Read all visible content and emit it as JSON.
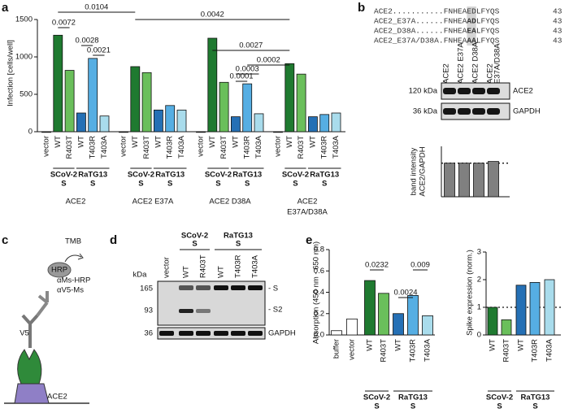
{
  "panel_labels": [
    "a",
    "b",
    "c",
    "d",
    "e"
  ],
  "alignment": {
    "rows": [
      {
        "name": "ACE2...........",
        "pre": "FNHEA",
        "mut": "ED",
        "post": "LFYQS",
        "end": "43"
      },
      {
        "name": "ACE2_E37A......",
        "pre": "FNHEA",
        "mut": "AD",
        "post": "LFYQS",
        "end": "43"
      },
      {
        "name": "ACE2_D38A......",
        "pre": "FNHEA",
        "mut": "EA",
        "post": "LFYQS",
        "end": "43"
      },
      {
        "name": "ACE2_E37A/D38A.",
        "pre": "FNHEA",
        "mut": "AA",
        "post": "LFYQS",
        "end": "43"
      }
    ]
  },
  "blot_b": {
    "lanes": [
      [
        "ACE2"
      ],
      [
        "ACE2 E37A"
      ],
      [
        "ACE2 D38A"
      ],
      [
        "ACE2",
        "E37A/D38A"
      ]
    ],
    "markers": [
      "120 kDa",
      "36 kDa"
    ],
    "bands": [
      "ACE2",
      "GAPDH"
    ]
  },
  "diagram_c": {
    "labels": [
      "TMB",
      "HRP",
      "αMs-HRP",
      "αV5-Ms",
      "V5",
      "ACE2"
    ]
  },
  "blot_d": {
    "unit": "kDa",
    "markers": [
      "165",
      "93",
      "36"
    ],
    "lanes": [
      "vector",
      "WT",
      "R403T",
      "WT",
      "T403R",
      "T403A"
    ],
    "groups": [
      [
        "SCoV-2",
        "S"
      ],
      [
        "RaTG13",
        "S"
      ]
    ],
    "bands": [
      "- S",
      "- S2",
      "GAPDH"
    ]
  },
  "chart_data": [
    {
      "type": "grouped_bar",
      "ylabel": "Infection [cells/well]",
      "ylim": [
        0,
        1500
      ],
      "yticks": [
        0,
        500,
        1000,
        1500
      ],
      "categories": [
        "vector",
        "WT",
        "R403T",
        "WT",
        "T403R",
        "T403A"
      ],
      "colors": [
        "#555555",
        "#1f7a30",
        "#6abf5b",
        "#2570b5",
        "#56aee3",
        "#a9dcec"
      ],
      "subgroups": [
        [
          "SCoV-2",
          "S"
        ],
        [
          "RaTG13",
          "S"
        ]
      ],
      "groups": [
        {
          "name": [
            "ACE2"
          ],
          "values": [
            0,
            1290,
            820,
            250,
            980,
            210
          ]
        },
        {
          "name": [
            "ACE2 E37A"
          ],
          "values": [
            0,
            870,
            790,
            290,
            350,
            290
          ]
        },
        {
          "name": [
            "ACE2 D38A"
          ],
          "values": [
            0,
            1250,
            660,
            200,
            640,
            240
          ]
        },
        {
          "name": [
            "ACE2",
            "E37A/D38A"
          ],
          "values": [
            0,
            910,
            770,
            200,
            230,
            250
          ]
        }
      ],
      "annotations": [
        "0.0104",
        "0.0042",
        "0.0072",
        "0.0028",
        "0.0021",
        "0.0027",
        "0.0002",
        "0.0003",
        "0.0001"
      ]
    },
    {
      "type": "bar",
      "ylabel": [
        "band intensity",
        "ACE2/GAPDH"
      ],
      "ylim": [
        0,
        1.5
      ],
      "values": [
        1,
        1,
        1,
        1.05
      ],
      "colors": [
        "#808080",
        "#808080",
        "#808080",
        "#808080"
      ],
      "hline": 1
    },
    {
      "type": "bar",
      "ylabel": [
        "Absorption (450 nm - 650 nm)"
      ],
      "ylim": [
        0,
        0.8
      ],
      "yticks": [
        {
          "value": 0,
          "label": "0.0"
        },
        {
          "value": 0.2,
          "label": "0.2"
        },
        {
          "value": 0.4,
          "label": "0.4"
        },
        {
          "value": 0.6,
          "label": "0.6"
        },
        {
          "value": 0.8,
          "label": "0.8"
        }
      ],
      "categories": [
        "buffer",
        "vector",
        "WT",
        "R403T",
        "WT",
        "T403R",
        "T403A"
      ],
      "values": [
        0.04,
        0.15,
        0.51,
        0.39,
        0.2,
        0.37,
        0.18
      ],
      "colors": [
        "#ffffff",
        "#ffffff",
        "#1f7a30",
        "#6abf5b",
        "#2570b5",
        "#56aee3",
        "#a9dcec"
      ],
      "subgroups": [
        [
          "SCoV-2",
          "S"
        ],
        [
          "RaTG13",
          "S"
        ]
      ],
      "annotations": [
        "0.0232",
        "0.0024",
        "0.009"
      ]
    },
    {
      "type": "bar",
      "ylabel": [
        "Spike expression (norm.)"
      ],
      "ylim": [
        0,
        3
      ],
      "yticks": [
        0,
        1,
        2,
        3
      ],
      "categories": [
        "WT",
        "R403T",
        "WT",
        "T403R",
        "T403A"
      ],
      "values": [
        1,
        0.55,
        1.8,
        1.9,
        2.0
      ],
      "colors": [
        "#1f7a30",
        "#6abf5b",
        "#2570b5",
        "#56aee3",
        "#a9dcec"
      ],
      "subgroups": [
        [
          "SCoV-2",
          "S"
        ],
        [
          "RaTG13",
          "S"
        ]
      ],
      "hline": 1
    }
  ]
}
